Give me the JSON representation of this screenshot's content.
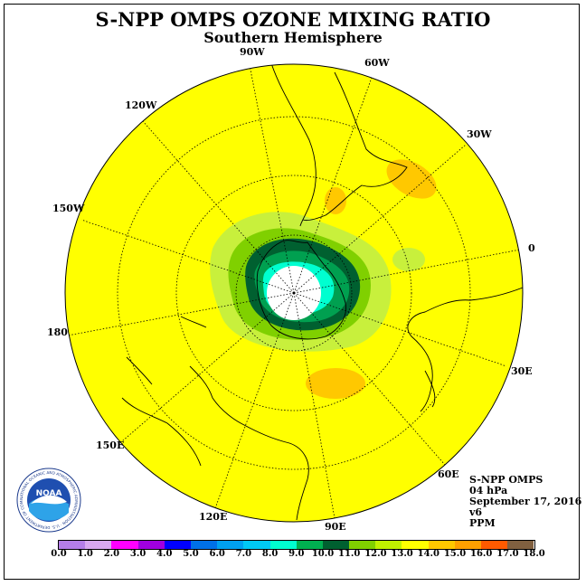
{
  "header": {
    "title": "S-NPP OMPS OZONE MIXING RATIO",
    "subtitle": "Southern Hemisphere"
  },
  "longitude_labels": {
    "l90w": "90W",
    "l60w": "60W",
    "l120w": "120W",
    "l30w": "30W",
    "l150w": "150W",
    "l0": "0",
    "l180": "180",
    "l30e": "30E",
    "l150e": "150E",
    "l60e": "60E",
    "l120e": "120E",
    "l90e": "90E"
  },
  "info": {
    "instrument": "S-NPP OMPS",
    "pressure": "04 hPa",
    "date": "September 17, 2016",
    "version": "v6",
    "units": "PPM"
  },
  "colorbar": {
    "colors": [
      "#b57ee8",
      "#d9a8f0",
      "#ff00ff",
      "#a000e0",
      "#0000ff",
      "#0070e8",
      "#00a0f0",
      "#00c8f5",
      "#00ffd0",
      "#00b050",
      "#008040",
      "#006030",
      "#80d000",
      "#c0f000",
      "#ffff00",
      "#ffd000",
      "#ffa000",
      "#ff6000",
      "#ff0000",
      "#e00000",
      "#806040"
    ],
    "ticks": [
      "0.0",
      "1.0",
      "2.0",
      "3.0",
      "4.0",
      "5.0",
      "6.0",
      "7.0",
      "8.0",
      "9.0",
      "10.0",
      "11.0",
      "12.0",
      "13.0",
      "14.0",
      "15.0",
      "16.0",
      "17.0",
      "18.0"
    ]
  },
  "logo": {
    "text": "NOAA",
    "ring_text": "NATIONAL OCEANIC AND ATMOSPHERIC ADMINISTRATION · U.S. DEPARTMENT OF COMMERCE"
  }
}
